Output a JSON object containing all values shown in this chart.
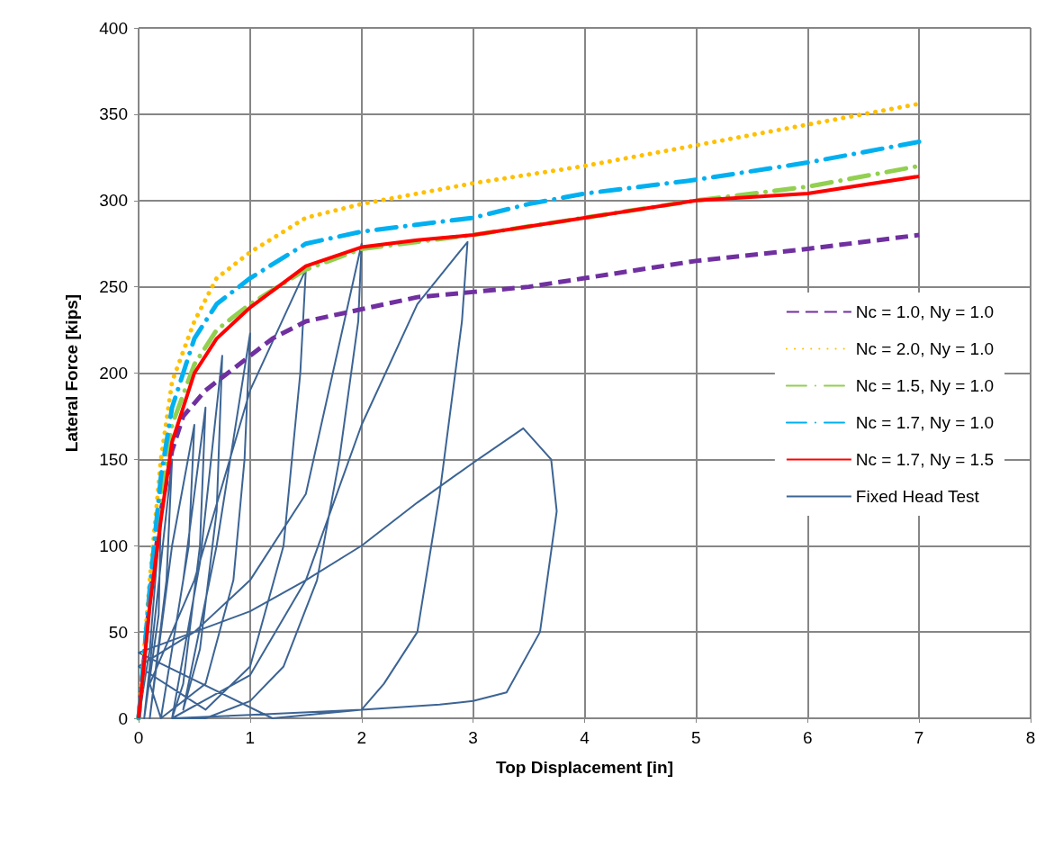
{
  "chart_data": {
    "type": "line",
    "xlabel": "Top Displacement [in]",
    "ylabel": "Lateral Force [kips]",
    "xlim": [
      0,
      8
    ],
    "xticks": [
      0,
      1,
      2,
      3,
      4,
      5,
      6,
      7,
      8
    ],
    "ylim": [
      0,
      400
    ],
    "yticks": [
      0,
      50,
      100,
      150,
      200,
      250,
      300,
      350,
      400
    ],
    "grid": true,
    "legend": "right",
    "marker": "none",
    "series": [
      {
        "name": "Nc = 1.0, Ny = 1.0",
        "color": "#7030a0",
        "line_style": "dashed",
        "x": [
          0,
          0.1,
          0.2,
          0.3,
          0.4,
          0.6,
          0.8,
          1.0,
          1.2,
          1.5,
          2,
          2.5,
          3,
          3.5,
          4,
          5,
          6,
          7
        ],
        "values": [
          0,
          70,
          120,
          155,
          175,
          190,
          200,
          210,
          220,
          230,
          237,
          244,
          247,
          250,
          255,
          265,
          272,
          280
        ]
      },
      {
        "name": "Nc = 2.0, Ny = 1.0",
        "color": "#ffc000",
        "line_style": "dotted",
        "x": [
          0,
          0.1,
          0.2,
          0.3,
          0.5,
          0.7,
          1,
          1.5,
          2,
          3,
          4,
          5,
          6,
          7
        ],
        "values": [
          0,
          80,
          150,
          195,
          230,
          255,
          270,
          290,
          298,
          310,
          320,
          332,
          344,
          356
        ]
      },
      {
        "name": "Nc = 1.5, Ny = 1.0",
        "color": "#92d050",
        "line_style": "dashdot",
        "x": [
          0,
          0.1,
          0.2,
          0.3,
          0.5,
          0.7,
          1,
          1.5,
          2,
          2.5,
          3,
          4,
          5,
          6,
          7
        ],
        "values": [
          0,
          70,
          130,
          170,
          205,
          225,
          240,
          260,
          272,
          276,
          280,
          290,
          300,
          308,
          320
        ]
      },
      {
        "name": "Nc = 1.7, Ny = 1.0",
        "color": "#00b0f0",
        "line_style": "dashdot",
        "x": [
          0,
          0.1,
          0.2,
          0.3,
          0.5,
          0.7,
          1,
          1.5,
          2,
          3,
          3.5,
          4,
          5,
          6,
          7
        ],
        "values": [
          0,
          75,
          140,
          180,
          220,
          240,
          255,
          275,
          282,
          290,
          298,
          304,
          312,
          322,
          334
        ]
      },
      {
        "name": "Nc = 1.7, Ny = 1.5",
        "color": "#ff0000",
        "line_style": "solid",
        "x": [
          0,
          0.1,
          0.2,
          0.3,
          0.5,
          0.7,
          1,
          1.5,
          2,
          2.5,
          3,
          4,
          5,
          6,
          7
        ],
        "values": [
          0,
          65,
          115,
          160,
          200,
          220,
          238,
          262,
          273,
          277,
          280,
          290,
          300,
          304,
          314
        ]
      },
      {
        "name": "Fixed Head Test",
        "color": "#3c6494",
        "line_style": "solid",
        "x": [
          0,
          0.1,
          0.2,
          0.18,
          0.05,
          0.15,
          0.3,
          0.25,
          0.1,
          0.3,
          0.5,
          0.45,
          0.25,
          0.2,
          0.4,
          0.6,
          0.55,
          0.4,
          0.3,
          0.55,
          0.75,
          0.7,
          0.55,
          0.4,
          0.7,
          1.0,
          0.95,
          0.85,
          0.6,
          0.2,
          0.1,
          0.5,
          1.0,
          1.5,
          1.45,
          1.3,
          1.0,
          0.6,
          0,
          0.5,
          1.0,
          1.5,
          2.0,
          1.97,
          1.8,
          1.6,
          1.3,
          1.0,
          0.6,
          0.3,
          1.0,
          1.5,
          2.0,
          2.5,
          2.95,
          2.9,
          2.7,
          2.5,
          2.2,
          2.0,
          1.2,
          0,
          0.5,
          1.0,
          1.5,
          2.0,
          2.5,
          3.0,
          3.45,
          3.7,
          3.75,
          3.6,
          3.3,
          3.0,
          2.7,
          2.0,
          1.0,
          0.3
        ],
        "values": [
          0,
          40,
          120,
          60,
          0,
          60,
          150,
          80,
          0,
          100,
          170,
          100,
          20,
          0,
          80,
          180,
          100,
          20,
          0,
          90,
          210,
          120,
          40,
          5,
          100,
          223,
          150,
          80,
          20,
          0,
          20,
          80,
          190,
          260,
          200,
          100,
          30,
          5,
          30,
          50,
          80,
          130,
          275,
          230,
          150,
          80,
          30,
          10,
          0,
          0,
          25,
          80,
          170,
          240,
          276,
          230,
          130,
          50,
          20,
          5,
          0,
          38,
          50,
          62,
          80,
          100,
          125,
          148,
          168,
          150,
          120,
          50,
          15,
          10,
          8,
          5,
          2,
          0
        ]
      }
    ]
  }
}
